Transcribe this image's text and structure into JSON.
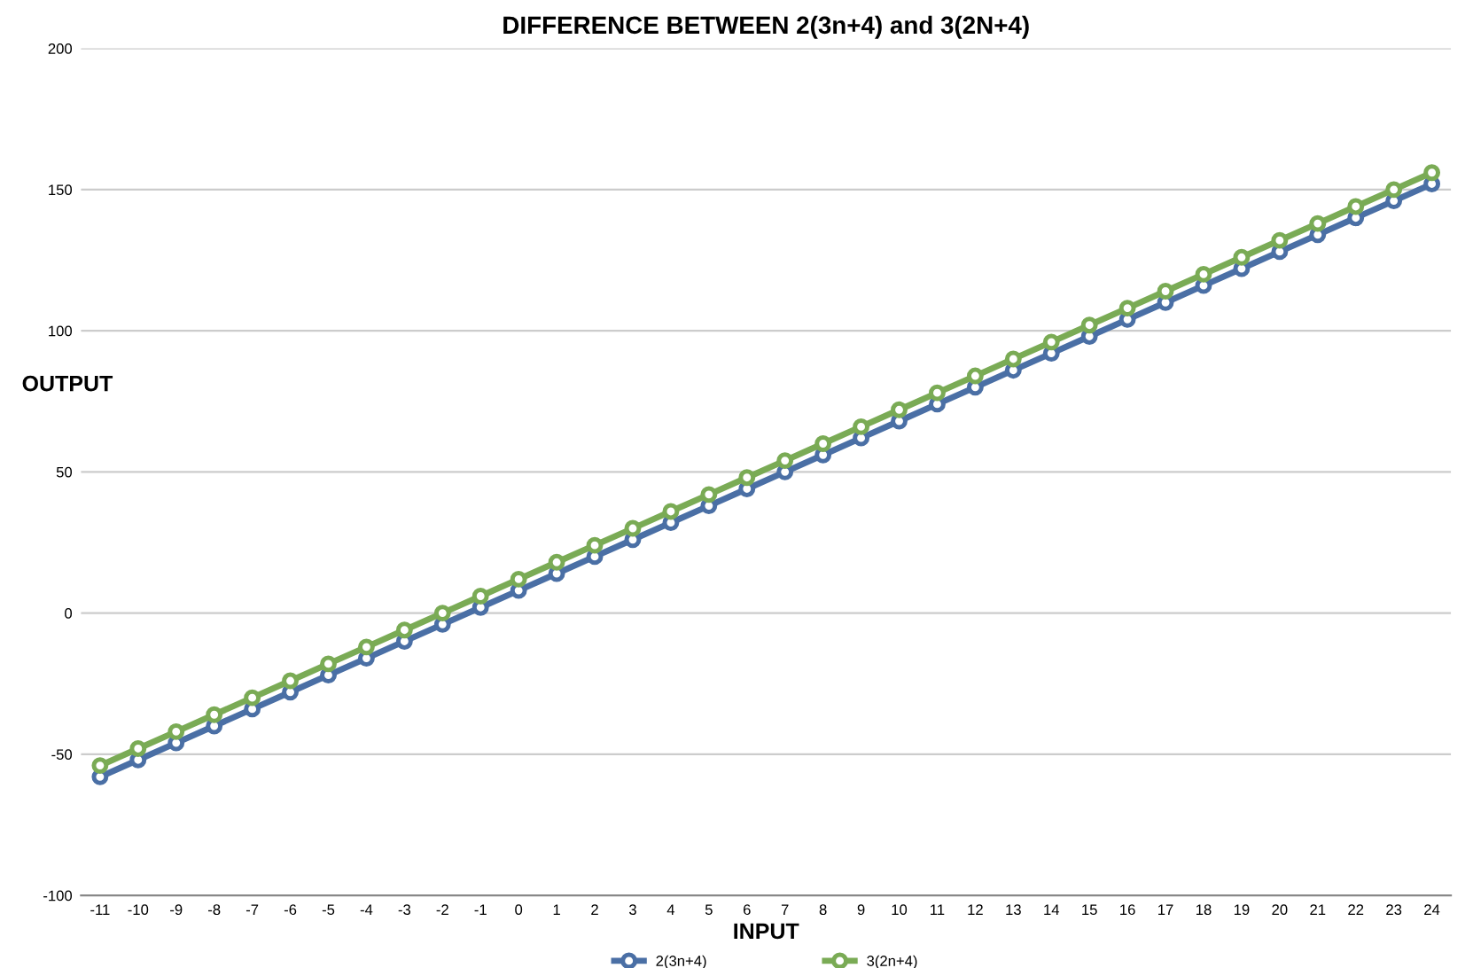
{
  "chart_data": {
    "type": "line",
    "title": "DIFFERENCE BETWEEN 2(3n+4) and 3(2N+4)",
    "xlabel": "INPUT",
    "ylabel": "OUTPUT",
    "categories": [
      "-11",
      "-10",
      "-9",
      "-8",
      "-7",
      "-6",
      "-5",
      "-4",
      "-3",
      "-2",
      "-1",
      "0",
      "1",
      "2",
      "3",
      "4",
      "5",
      "6",
      "7",
      "8",
      "9",
      "10",
      "11",
      "12",
      "13",
      "14",
      "15",
      "16",
      "17",
      "18",
      "19",
      "20",
      "21",
      "22",
      "23",
      "24"
    ],
    "series": [
      {
        "name": "2(3n+4)",
        "color": "#4a6fa5",
        "values": [
          -58,
          -52,
          -46,
          -40,
          -34,
          -28,
          -22,
          -16,
          -10,
          -4,
          2,
          8,
          14,
          20,
          26,
          32,
          38,
          44,
          50,
          56,
          62,
          68,
          74,
          80,
          86,
          92,
          98,
          104,
          110,
          116,
          122,
          128,
          134,
          140,
          146,
          152
        ]
      },
      {
        "name": "3(2n+4)",
        "color": "#7aab55",
        "values": [
          -54,
          -48,
          -42,
          -36,
          -30,
          -24,
          -18,
          -12,
          -6,
          0,
          6,
          12,
          18,
          24,
          30,
          36,
          42,
          48,
          54,
          60,
          66,
          72,
          78,
          84,
          90,
          96,
          102,
          108,
          114,
          120,
          126,
          132,
          138,
          144,
          150,
          156
        ]
      }
    ],
    "ylim": [
      -100,
      200
    ],
    "yticks": [
      -100,
      -50,
      0,
      50,
      100,
      150,
      200
    ],
    "grid": "y",
    "legend": "bottom",
    "marker": "circle",
    "line_style": "solid"
  }
}
